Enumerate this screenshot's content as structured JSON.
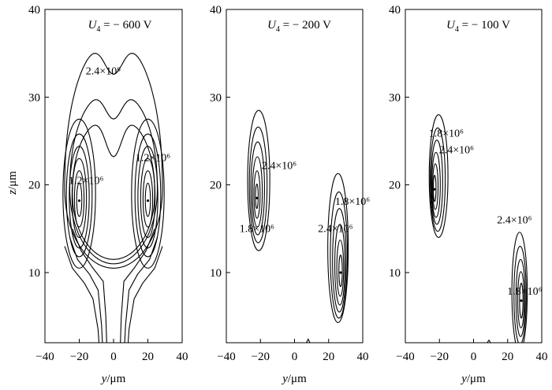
{
  "figure": {
    "y_label": "y/μm",
    "z_label": "z/μm"
  },
  "chart_data": [
    {
      "type": "contour",
      "title": "U4 = − 600 V",
      "title_var": "U",
      "title_sub": "4",
      "title_rest": " = − 600 V",
      "xlabel": "y/μm",
      "ylabel": "z/μm",
      "xlim": [
        -40,
        40
      ],
      "ylim": [
        2,
        40
      ],
      "xticks": [
        -40,
        -20,
        0,
        20,
        40
      ],
      "yticks": [
        10,
        20,
        30,
        40
      ],
      "sources": [
        {
          "x": -20,
          "z": 18.2
        },
        {
          "x": 20,
          "z": 18.2
        }
      ],
      "contours": [
        {
          "shape": "bean",
          "cx": 0,
          "cz": 19.5,
          "rx": 28.5,
          "rtop": 17.3,
          "rbottom": 9,
          "dip": 4.2
        },
        {
          "shape": "bean",
          "cx": 0,
          "cz": 19.5,
          "rx": 25.5,
          "rtop": 11.5,
          "rbottom": 8.5,
          "dip": 3.5
        },
        {
          "shape": "bean",
          "cx": 0,
          "cz": 19.0,
          "rx": 24,
          "rtop": 9,
          "rbottom": 7.5,
          "dip": 4.8
        },
        {
          "shape": "ellipse",
          "cx": -20,
          "cz": 19.0,
          "rx": 9.5,
          "rz": 8.5
        },
        {
          "shape": "ellipse",
          "cx": -20,
          "cz": 18.8,
          "rx": 7.5,
          "rz": 7.0
        },
        {
          "shape": "ellipse",
          "cx": -20,
          "cz": 18.6,
          "rx": 5.8,
          "rz": 5.8
        },
        {
          "shape": "ellipse",
          "cx": -20,
          "cz": 18.5,
          "rx": 4.2,
          "rz": 4.5
        },
        {
          "shape": "ellipse",
          "cx": -20,
          "cz": 18.4,
          "rx": 2.8,
          "rz": 3.2
        },
        {
          "shape": "ellipse",
          "cx": -20,
          "cz": 18.3,
          "rx": 1.5,
          "rz": 1.9
        },
        {
          "shape": "ellipse",
          "cx": 20,
          "cz": 19.0,
          "rx": 9.5,
          "rz": 8.5
        },
        {
          "shape": "ellipse",
          "cx": 20,
          "cz": 18.8,
          "rx": 7.5,
          "rz": 7.0
        },
        {
          "shape": "ellipse",
          "cx": 20,
          "cz": 18.6,
          "rx": 5.8,
          "rz": 5.8
        },
        {
          "shape": "ellipse",
          "cx": 20,
          "cz": 18.5,
          "rx": 4.2,
          "rz": 4.5
        },
        {
          "shape": "ellipse",
          "cx": 20,
          "cz": 18.4,
          "rx": 2.8,
          "rz": 3.2
        },
        {
          "shape": "ellipse",
          "cx": 20,
          "cz": 18.3,
          "rx": 1.5,
          "rz": 1.9
        },
        {
          "shape": "polyline",
          "points": [
            [
              -28.5,
              13
            ],
            [
              -24,
              10.5
            ],
            [
              -17,
              8.8
            ],
            [
              -12,
              7
            ],
            [
              -9,
              3.5
            ],
            [
              -8.5,
              2
            ]
          ]
        },
        {
          "shape": "polyline",
          "points": [
            [
              -25.5,
              14
            ],
            [
              -21,
              11.5
            ],
            [
              -14,
              9.8
            ],
            [
              -9,
              8
            ],
            [
              -7,
              4
            ],
            [
              -6.5,
              2
            ]
          ]
        },
        {
          "shape": "polyline",
          "points": [
            [
              -24,
              15
            ],
            [
              -19,
              12.5
            ],
            [
              -12,
              10.5
            ],
            [
              -6,
              9
            ],
            [
              -4.5,
              5
            ],
            [
              -4,
              2
            ]
          ]
        },
        {
          "shape": "polyline",
          "points": [
            [
              28.5,
              13
            ],
            [
              24,
              10.5
            ],
            [
              17,
              8.8
            ],
            [
              12,
              7
            ],
            [
              9,
              3.5
            ],
            [
              8.5,
              2
            ]
          ]
        },
        {
          "shape": "polyline",
          "points": [
            [
              25.5,
              14
            ],
            [
              21,
              11.5
            ],
            [
              14,
              9.8
            ],
            [
              9,
              8
            ],
            [
              7,
              4
            ],
            [
              6.5,
              2
            ]
          ]
        },
        {
          "shape": "polyline",
          "points": [
            [
              24,
              15
            ],
            [
              19,
              12.5
            ],
            [
              12,
              10.5
            ],
            [
              6,
              9
            ],
            [
              4.5,
              5
            ],
            [
              4,
              2
            ]
          ]
        }
      ],
      "annotations": [
        {
          "text": "2.4×10⁶",
          "x": -6,
          "z": 32.6
        },
        {
          "text": "1.2×10⁶",
          "x": 23,
          "z": 22.7
        },
        {
          "text": "1.2×10⁶",
          "x": -16,
          "z": 20.1
        }
      ]
    },
    {
      "type": "contour",
      "title": "U4 = − 200 V",
      "title_var": "U",
      "title_sub": "4",
      "title_rest": " = − 200 V",
      "xlabel": "y/μm",
      "ylabel": "",
      "xlim": [
        -40,
        40
      ],
      "ylim": [
        2,
        40
      ],
      "xticks": [
        -40,
        -20,
        0,
        20,
        40
      ],
      "yticks": [
        10,
        20,
        30,
        40
      ],
      "sources": [
        {
          "x": -22,
          "z": 18.5
        },
        {
          "x": 27,
          "z": 10
        }
      ],
      "contours": [
        {
          "shape": "ellipse",
          "cx": -21,
          "cz": 20.5,
          "rx": 6.5,
          "rz": 8.0
        },
        {
          "shape": "ellipse",
          "cx": -21.3,
          "cz": 20.0,
          "rx": 5.2,
          "rz": 6.6
        },
        {
          "shape": "ellipse",
          "cx": -21.6,
          "cz": 19.6,
          "rx": 4.0,
          "rz": 5.3
        },
        {
          "shape": "ellipse",
          "cx": -21.8,
          "cz": 19.2,
          "rx": 2.9,
          "rz": 4.0
        },
        {
          "shape": "ellipse",
          "cx": -22.0,
          "cz": 18.9,
          "rx": 1.8,
          "rz": 2.7
        },
        {
          "shape": "ellipse",
          "cx": -22.1,
          "cz": 18.7,
          "rx": 0.8,
          "rz": 1.4
        },
        {
          "shape": "ellipse",
          "cx": 25.5,
          "cz": 12.8,
          "rx": 6.0,
          "rz": 8.5
        },
        {
          "shape": "ellipse",
          "cx": 26.0,
          "cz": 12.0,
          "rx": 5.0,
          "rz": 7.2
        },
        {
          "shape": "ellipse",
          "cx": 26.3,
          "cz": 11.4,
          "rx": 4.0,
          "rz": 5.9
        },
        {
          "shape": "ellipse",
          "cx": 26.6,
          "cz": 10.9,
          "rx": 3.0,
          "rz": 4.6
        },
        {
          "shape": "ellipse",
          "cx": 26.8,
          "cz": 10.5,
          "rx": 2.0,
          "rz": 3.2
        },
        {
          "shape": "ellipse",
          "cx": 27.0,
          "cz": 10.2,
          "rx": 1.0,
          "rz": 1.8
        },
        {
          "shape": "polyline",
          "points": [
            [
              7,
              2
            ],
            [
              8,
              2.4
            ],
            [
              9,
              2
            ]
          ]
        }
      ],
      "annotations": [
        {
          "text": "2.4×10⁶",
          "x": -9,
          "z": 21.8
        },
        {
          "text": "1.8×10⁶",
          "x": -22,
          "z": 14.6
        },
        {
          "text": "1.8×10⁶",
          "x": 34,
          "z": 17.7
        },
        {
          "text": "2.4×10⁶",
          "x": 24,
          "z": 14.6
        }
      ]
    },
    {
      "type": "contour",
      "title": "U4 = − 100 V",
      "title_var": "U",
      "title_sub": "4",
      "title_rest": " = − 100 V",
      "xlabel": "y/μm",
      "ylabel": "",
      "xlim": [
        -40,
        40
      ],
      "ylim": [
        2,
        40
      ],
      "xticks": [
        -40,
        -20,
        0,
        20,
        40
      ],
      "yticks": [
        10,
        20,
        30,
        40
      ],
      "sources": [
        {
          "x": -23,
          "z": 19.5
        },
        {
          "x": 28,
          "z": 6.8
        }
      ],
      "contours": [
        {
          "shape": "ellipse",
          "cx": -20.5,
          "cz": 21.0,
          "rx": 5.5,
          "rz": 7.0
        },
        {
          "shape": "ellipse",
          "cx": -21.0,
          "cz": 20.6,
          "rx": 4.4,
          "rz": 5.9
        },
        {
          "shape": "ellipse",
          "cx": -21.5,
          "cz": 20.3,
          "rx": 3.4,
          "rz": 4.8
        },
        {
          "shape": "ellipse",
          "cx": -22.0,
          "cz": 20.0,
          "rx": 2.5,
          "rz": 3.7
        },
        {
          "shape": "ellipse",
          "cx": -22.4,
          "cz": 19.8,
          "rx": 1.6,
          "rz": 2.6
        },
        {
          "shape": "ellipse",
          "cx": -22.8,
          "cz": 19.6,
          "rx": 0.8,
          "rz": 1.5
        },
        {
          "shape": "ellipse",
          "cx": 27.0,
          "cz": 7.8,
          "rx": 4.5,
          "rz": 6.8
        },
        {
          "shape": "ellipse",
          "cx": 27.3,
          "cz": 7.4,
          "rx": 3.6,
          "rz": 5.6
        },
        {
          "shape": "ellipse",
          "cx": 27.6,
          "cz": 7.1,
          "rx": 2.7,
          "rz": 4.4
        },
        {
          "shape": "ellipse",
          "cx": 27.8,
          "cz": 6.9,
          "rx": 1.9,
          "rz": 3.2
        },
        {
          "shape": "ellipse",
          "cx": 28.0,
          "cz": 6.8,
          "rx": 1.0,
          "rz": 2.0
        },
        {
          "shape": "polyline",
          "points": [
            [
              8,
              2
            ],
            [
              9,
              2.3
            ],
            [
              10,
              2
            ]
          ]
        }
      ],
      "annotations": [
        {
          "text": "1.8×10⁶",
          "x": -16,
          "z": 25.5
        },
        {
          "text": "2.4×10⁶",
          "x": -10,
          "z": 23.6
        },
        {
          "text": "2.4×10⁶",
          "x": 24,
          "z": 15.6
        },
        {
          "text": "1.8×10⁶",
          "x": 30,
          "z": 7.5
        }
      ]
    }
  ]
}
